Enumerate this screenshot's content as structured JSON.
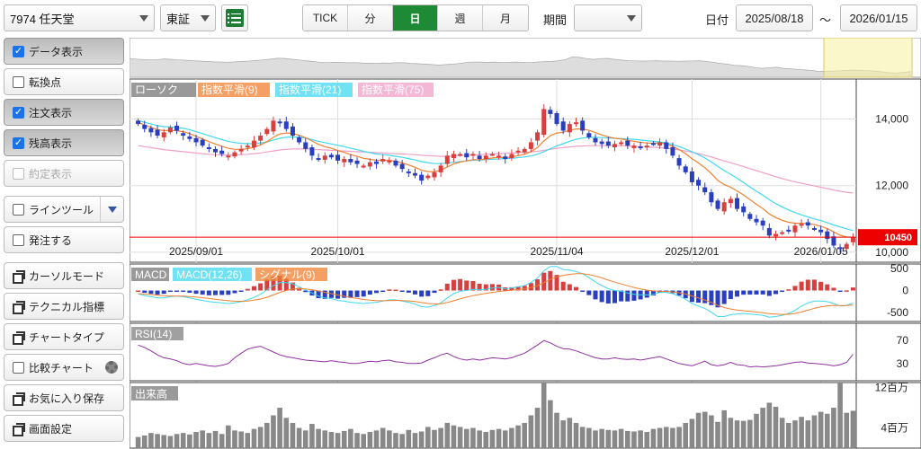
{
  "toolbar": {
    "symbol": "7974 任天堂",
    "market": "東証",
    "timeframes": [
      "TICK",
      "分",
      "日",
      "週",
      "月"
    ],
    "active_timeframe": 2,
    "period_label": "期間",
    "period_value": "",
    "date_label": "日付",
    "date_from": "2025/08/18",
    "date_sep": "〜",
    "date_to": "2026/01/15"
  },
  "sidebar": {
    "items": [
      {
        "label": "データ表示",
        "checkbox": true,
        "checked": true,
        "pressed": true
      },
      {
        "label": "転換点",
        "checkbox": true,
        "checked": false
      },
      {
        "label": "注文表示",
        "checkbox": true,
        "checked": true,
        "pressed": true
      },
      {
        "label": "残高表示",
        "checkbox": true,
        "checked": true,
        "pressed": true
      },
      {
        "label": "約定表示",
        "checkbox": true,
        "checked": false,
        "disabled": true
      },
      {
        "label": "ラインツール",
        "checkbox": true,
        "checked": false,
        "dropdown": true
      },
      {
        "label": "発注する",
        "checkbox": true,
        "checked": false
      },
      {
        "label": "カーソルモード",
        "icon": "window-icon"
      },
      {
        "label": "テクニカル指標",
        "icon": "window-icon"
      },
      {
        "label": "チャートタイプ",
        "icon": "window-icon"
      },
      {
        "label": "比較チャート",
        "checkbox": true,
        "checked": false,
        "gear": true
      },
      {
        "label": "お気に入り保存",
        "icon": "window-icon"
      },
      {
        "label": "画面設定",
        "icon": "window-icon"
      }
    ]
  },
  "legend": {
    "candle": "ローソク",
    "ema9": "指数平滑(9)",
    "ema21": "指数平滑(21)",
    "ema75": "指数平滑(75)",
    "macd": "MACD",
    "macd_line": "MACD(12,26)",
    "signal": "シグナル(9)",
    "rsi": "RSI(14)",
    "volume": "出来高"
  },
  "colors": {
    "up": "#d84040",
    "down": "#2a3fc0",
    "ema9": "#f08030",
    "ema21": "#40d8f0",
    "ema75": "#f0a0c8",
    "rsi": "#9030a0",
    "volume": "#888888",
    "price_tag": "#ee0000",
    "timeframe_active": "#1e8a36"
  },
  "chart_data": [
    {
      "type": "candlestick",
      "title": "",
      "x_ticks": [
        "2025/09/01",
        "2025/10/01",
        "2025/11/04",
        "2025/12/01",
        "2026/01/05"
      ],
      "y_ticks": [
        "14,000",
        "12,000",
        "10,000"
      ],
      "ylim": [
        9700,
        15200
      ],
      "last_price": 10450,
      "last_price_label": "10450",
      "close": [
        13850,
        13700,
        13600,
        13500,
        13600,
        13750,
        13650,
        13500,
        13400,
        13300,
        13200,
        13100,
        13000,
        12950,
        12900,
        13000,
        13100,
        13200,
        13350,
        13500,
        13700,
        13950,
        13900,
        13700,
        13500,
        13300,
        13100,
        12900,
        12800,
        12900,
        12850,
        12750,
        12800,
        12700,
        12650,
        12600,
        12700,
        12650,
        12800,
        12750,
        12600,
        12500,
        12400,
        12300,
        12150,
        12300,
        12400,
        12600,
        12900,
        12950,
        12950,
        12850,
        12950,
        12800,
        12900,
        12950,
        12900,
        12800,
        12950,
        13050,
        13100,
        13300,
        13600,
        14300,
        14150,
        13850,
        13650,
        13850,
        13900,
        13650,
        13450,
        13300,
        13250,
        13200,
        13250,
        13300,
        13200,
        13200,
        13150,
        13200,
        13250,
        13300,
        13100,
        12900,
        12600,
        12400,
        12100,
        12000,
        11800,
        11500,
        11300,
        11500,
        11600,
        11300,
        11200,
        11000,
        10900,
        10800,
        10500,
        10550,
        10600,
        10650,
        10800,
        10850,
        10800,
        10700,
        10600,
        10400,
        10200,
        10100,
        10250,
        10450
      ],
      "ema9": [
        13900,
        13820,
        13750,
        13680,
        13650,
        13660,
        13650,
        13620,
        13560,
        13480,
        13400,
        13320,
        13250,
        13180,
        13120,
        13090,
        13090,
        13110,
        13150,
        13220,
        13320,
        13450,
        13550,
        13580,
        13570,
        13510,
        13440,
        13340,
        13240,
        13170,
        13120,
        13050,
        13000,
        12930,
        12880,
        12820,
        12790,
        12760,
        12760,
        12760,
        12730,
        12680,
        12620,
        12550,
        12460,
        12420,
        12420,
        12460,
        12560,
        12650,
        12710,
        12740,
        12780,
        12780,
        12800,
        12830,
        12850,
        12840,
        12860,
        12900,
        12940,
        13020,
        13140,
        13340,
        13500,
        13580,
        13600,
        13660,
        13700,
        13700,
        13660,
        13590,
        13520,
        13460,
        13420,
        13400,
        13360,
        13330,
        13300,
        13280,
        13270,
        13280,
        13250,
        13180,
        13080,
        12960,
        12810,
        12680,
        12540,
        12360,
        12160,
        12030,
        11950,
        11840,
        11720,
        11580,
        11440,
        11310,
        11150,
        11040,
        10960,
        10900,
        10870,
        10870,
        10860,
        10830,
        10780,
        10710,
        10610,
        10510,
        10460,
        10450
      ],
      "ema21": [
        13950,
        13900,
        13850,
        13800,
        13770,
        13760,
        13740,
        13720,
        13680,
        13620,
        13560,
        13500,
        13440,
        13380,
        13330,
        13290,
        13270,
        13260,
        13260,
        13280,
        13310,
        13370,
        13420,
        13450,
        13460,
        13450,
        13430,
        13380,
        13330,
        13290,
        13250,
        13210,
        13170,
        13120,
        13080,
        13030,
        12990,
        12950,
        12930,
        12910,
        12880,
        12850,
        12810,
        12770,
        12720,
        12690,
        12660,
        12660,
        12680,
        12700,
        12720,
        12740,
        12760,
        12770,
        12780,
        12790,
        12800,
        12810,
        12820,
        12840,
        12860,
        12890,
        12940,
        13020,
        13110,
        13190,
        13260,
        13330,
        13390,
        13430,
        13450,
        13450,
        13440,
        13430,
        13420,
        13410,
        13400,
        13390,
        13370,
        13350,
        13330,
        13310,
        13280,
        13230,
        13170,
        13100,
        13020,
        12930,
        12830,
        12710,
        12580,
        12450,
        12340,
        12220,
        12090,
        11960,
        11830,
        11710,
        11580,
        11460,
        11360,
        11270,
        11190,
        11120,
        11060,
        11000,
        10950,
        10890,
        10820,
        10760,
        10700,
        10650
      ],
      "ema75": [
        13200,
        13170,
        13140,
        13110,
        13080,
        13060,
        13040,
        13020,
        13000,
        12980,
        12960,
        12940,
        12930,
        12920,
        12920,
        12920,
        12930,
        12940,
        12960,
        12980,
        13010,
        13040,
        13070,
        13090,
        13100,
        13100,
        13100,
        13090,
        13080,
        13070,
        13060,
        13050,
        13040,
        13030,
        13020,
        13010,
        13000,
        12990,
        12980,
        12970,
        12960,
        12950,
        12940,
        12930,
        12910,
        12900,
        12890,
        12880,
        12880,
        12890,
        12900,
        12910,
        12920,
        12930,
        12940,
        12950,
        12960,
        12970,
        12980,
        12990,
        13000,
        13010,
        13030,
        13060,
        13090,
        13120,
        13140,
        13160,
        13180,
        13190,
        13200,
        13200,
        13200,
        13200,
        13200,
        13200,
        13190,
        13180,
        13170,
        13160,
        13150,
        13140,
        13120,
        13100,
        13070,
        13040,
        13000,
        12960,
        12910,
        12860,
        12800,
        12740,
        12690,
        12630,
        12570,
        12510,
        12450,
        12390,
        12330,
        12270,
        12210,
        12160,
        12110,
        12070,
        12030,
        11990,
        11950,
        11910,
        11870,
        11830,
        11800,
        11780
      ]
    },
    {
      "type": "bar+line",
      "title": "MACD",
      "y_ticks": [
        "500",
        "0",
        "-500"
      ],
      "ylim": [
        -700,
        600
      ]
    },
    {
      "type": "line",
      "title": "RSI",
      "y_ticks": [
        "70",
        "30"
      ],
      "ylim": [
        0,
        100
      ],
      "values": [
        62,
        58,
        52,
        45,
        40,
        38,
        35,
        30,
        28,
        30,
        28,
        26,
        25,
        27,
        30,
        40,
        48,
        55,
        58,
        60,
        55,
        50,
        45,
        42,
        40,
        38,
        36,
        35,
        34,
        33,
        35,
        33,
        32,
        30,
        30,
        32,
        34,
        33,
        35,
        36,
        33,
        32,
        30,
        30,
        31,
        36,
        40,
        45,
        48,
        42,
        38,
        36,
        38,
        36,
        38,
        40,
        39,
        38,
        40,
        44,
        48,
        55,
        62,
        70,
        66,
        60,
        56,
        55,
        52,
        48,
        44,
        40,
        38,
        38,
        40,
        38,
        37,
        38,
        36,
        38,
        40,
        42,
        38,
        34,
        30,
        28,
        26,
        30,
        34,
        28,
        26,
        28,
        32,
        28,
        27,
        24,
        25,
        24,
        25,
        26,
        28,
        30,
        32,
        33,
        31,
        30,
        29,
        28,
        26,
        28,
        32,
        46
      ]
    },
    {
      "type": "bar",
      "title": "出来高",
      "y_ticks": [
        "12百万",
        "4百万"
      ],
      "ylim": [
        0,
        13
      ],
      "values": [
        2.2,
        2.5,
        3,
        2.8,
        2.6,
        2.4,
        2.8,
        3,
        2.7,
        3.2,
        3.5,
        3,
        3.4,
        2.8,
        4.5,
        3.5,
        3.3,
        3,
        3.8,
        4.2,
        5,
        6.5,
        8,
        6,
        5,
        4,
        3.5,
        4.8,
        3.8,
        3.5,
        3.2,
        3,
        3.4,
        3.8,
        3,
        2.8,
        3.2,
        3.5,
        4,
        3.5,
        3,
        2.8,
        3.6,
        3,
        3.3,
        4.2,
        3.6,
        4,
        5,
        4.5,
        4.2,
        3.8,
        4,
        3.5,
        3.2,
        3.6,
        3.8,
        3.5,
        4,
        4.5,
        5,
        6.5,
        8,
        13,
        9.5,
        7,
        5.5,
        6,
        5,
        4.2,
        4,
        3.5,
        3.8,
        3.6,
        3.5,
        3.8,
        3.4,
        3.3,
        3.5,
        3.2,
        3.8,
        4,
        4.2,
        4,
        4.2,
        5,
        5.8,
        7,
        7.2,
        6.5,
        5.2,
        7.5,
        6,
        5.5,
        5.4,
        5.6,
        6.8,
        8,
        9,
        8.2,
        6,
        5,
        5.5,
        6.2,
        5.5,
        6.5,
        7.2,
        6.8,
        8,
        13,
        7,
        7.4
      ]
    }
  ]
}
